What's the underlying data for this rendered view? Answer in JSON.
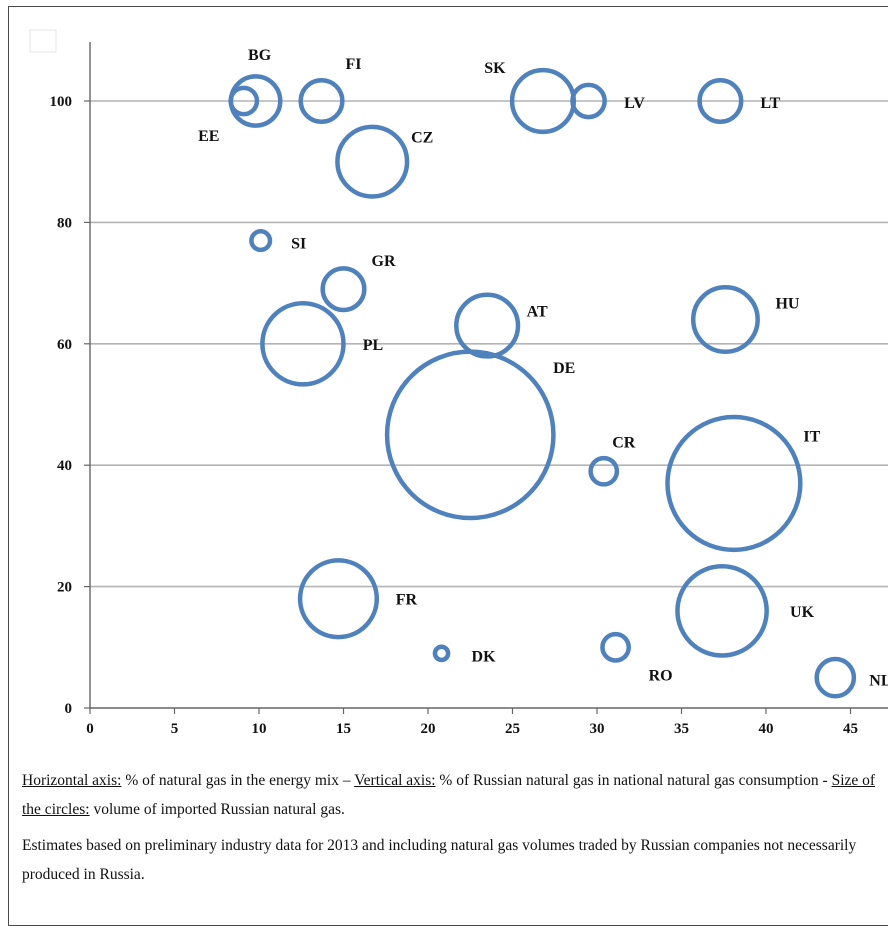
{
  "chart_data": {
    "type": "scatter",
    "bubble": true,
    "x_ticks": [
      "0",
      "5",
      "10",
      "15",
      "20",
      "25",
      "30",
      "35",
      "40",
      "45"
    ],
    "y_ticks": [
      "0",
      "20",
      "40",
      "60",
      "80",
      "100"
    ],
    "xlim": [
      0,
      47
    ],
    "ylim": [
      0,
      110
    ],
    "grid": "horizontal",
    "marker_color": "#4f81bd",
    "points": [
      {
        "label": "EE",
        "x": 9.1,
        "y": 100,
        "size": 2
      },
      {
        "label": "BG",
        "x": 9.8,
        "y": 100,
        "size": 7
      },
      {
        "label": "FI",
        "x": 13.7,
        "y": 100,
        "size": 5
      },
      {
        "label": "SK",
        "x": 26.8,
        "y": 100,
        "size": 11
      },
      {
        "label": "LV",
        "x": 29.5,
        "y": 100,
        "size": 3
      },
      {
        "label": "LT",
        "x": 37.3,
        "y": 100,
        "size": 5
      },
      {
        "label": "CZ",
        "x": 16.7,
        "y": 90,
        "size": 14
      },
      {
        "label": "SI",
        "x": 10.1,
        "y": 77,
        "size": 1
      },
      {
        "label": "GR",
        "x": 15,
        "y": 69,
        "size": 5
      },
      {
        "label": "AT",
        "x": 23.5,
        "y": 63,
        "size": 11
      },
      {
        "label": "HU",
        "x": 37.6,
        "y": 64,
        "size": 12
      },
      {
        "label": "PL",
        "x": 12.6,
        "y": 60,
        "size": 19
      },
      {
        "label": "DE",
        "x": 22.5,
        "y": 45,
        "size": 80
      },
      {
        "label": "CR",
        "x": 30.4,
        "y": 39,
        "size": 2
      },
      {
        "label": "IT",
        "x": 38.1,
        "y": 37,
        "size": 51
      },
      {
        "label": "FR",
        "x": 14.7,
        "y": 18,
        "size": 17
      },
      {
        "label": "UK",
        "x": 37.4,
        "y": 16,
        "size": 23
      },
      {
        "label": "RO",
        "x": 31.1,
        "y": 10,
        "size": 2
      },
      {
        "label": "DK",
        "x": 20.8,
        "y": 9,
        "size": 0.5
      },
      {
        "label": "NL",
        "x": 44.1,
        "y": 5,
        "size": 4
      }
    ]
  },
  "notes": {
    "line1_a": "Horizontal axis:",
    "line1_b": " % of natural gas in the energy mix – ",
    "line1_c": "Vertical axis:",
    "line1_d": " % of Russian natural gas in national natural gas consumption  - ",
    "line1_e": "Size of the circles:",
    "line1_f": " volume of imported Russian natural gas.",
    "line2": "Estimates based on preliminary industry data for 2013 and including natural gas volumes traded by Russian companies not necessarily produced in Russia."
  }
}
